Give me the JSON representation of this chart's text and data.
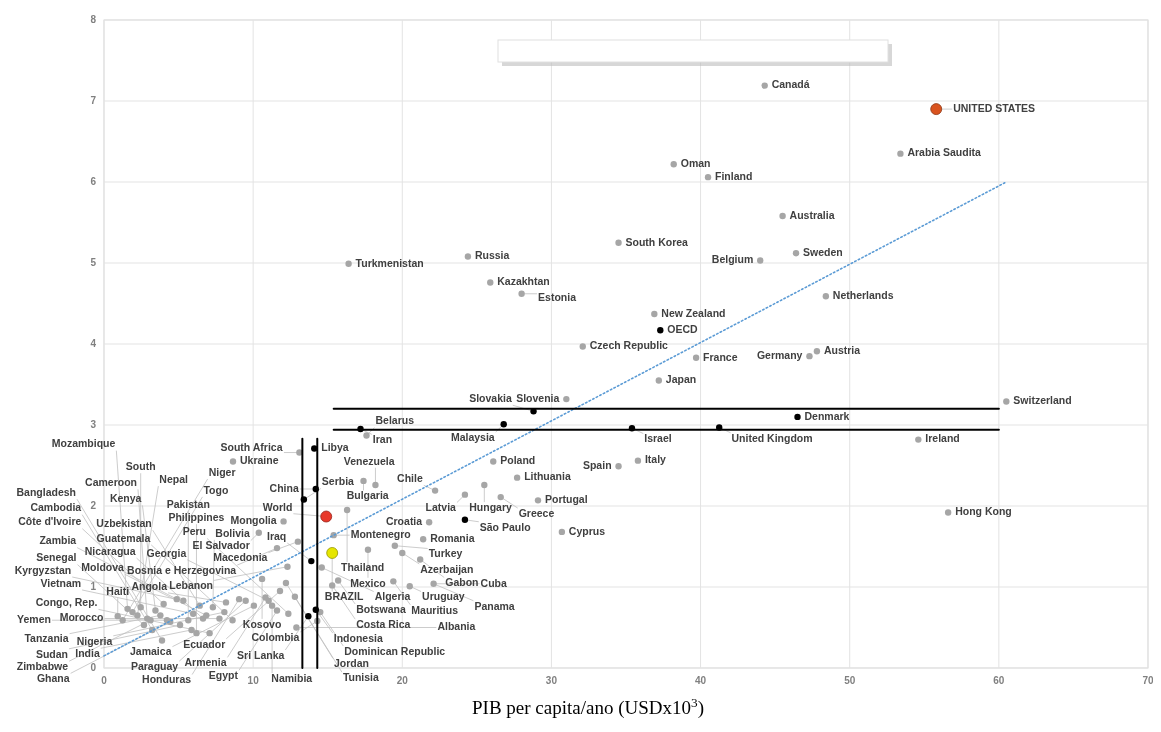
{
  "chart_data": {
    "type": "scatter",
    "xlabel": "PIB per capita/ano (USDx10$^{3}$)",
    "xlim": [
      0,
      70
    ],
    "ylim": [
      0,
      8
    ],
    "xticks": [
      0,
      10,
      20,
      30,
      40,
      50,
      60,
      70
    ],
    "yticks": [
      0,
      1,
      2,
      3,
      4,
      5,
      6,
      7,
      8
    ],
    "grid": true,
    "series": [
      {
        "color": "#a6a6a6",
        "marker": "circle",
        "x": [
          16.4,
          24.4,
          25.9,
          28.0,
          38.2,
          40.5,
          34.5,
          36.9,
          32.1,
          39.7,
          37.2,
          31.0,
          44.3,
          53.4,
          45.5,
          46.4,
          44.0,
          48.4,
          47.8,
          47.3,
          60.5,
          54.6,
          35.8,
          56.6,
          34.5,
          30.7,
          17.6,
          17.4,
          18.2,
          26.1,
          27.7,
          25.5,
          26.6,
          24.2,
          22.2,
          29.1,
          21.8,
          16.3,
          15.4,
          17.7,
          19.5,
          21.4,
          20.0,
          21.2,
          14.6,
          15.7,
          15.3,
          19.4,
          20.5,
          22.1,
          14.5,
          14.3,
          13.1,
          8.65,
          0.92,
          1.25,
          1.58,
          1.91,
          2.24,
          2.46,
          2.68,
          2.9,
          3.12,
          3.23,
          3.45,
          3.78,
          3.89,
          4.0,
          4.22,
          4.44,
          4.88,
          5.1,
          5.32,
          5.65,
          5.87,
          5.98,
          6.2,
          6.42,
          6.64,
          6.86,
          7.08,
          7.3,
          7.74,
          8.07,
          8.18,
          8.62,
          9.06,
          9.5,
          10.05,
          10.38,
          10.83,
          11.04,
          11.27,
          11.6,
          12.04,
          12.36,
          13.0,
          12.3,
          10.6,
          12.2,
          11.8,
          12.8,
          12.9,
          11.6
        ],
        "values": [
          4.99,
          5.08,
          4.76,
          4.62,
          6.22,
          6.06,
          5.25,
          4.37,
          3.97,
          3.83,
          3.55,
          3.32,
          7.19,
          6.35,
          5.58,
          5.12,
          5.03,
          4.59,
          3.91,
          3.85,
          3.29,
          2.82,
          2.56,
          1.92,
          2.49,
          1.68,
          2.87,
          2.31,
          2.26,
          2.55,
          2.35,
          2.26,
          2.11,
          2.14,
          2.19,
          2.07,
          1.8,
          1.95,
          1.64,
          1.46,
          1.51,
          1.59,
          1.42,
          1.34,
          1.24,
          1.08,
          1.02,
          1.07,
          1.01,
          1.04,
          0.69,
          0.58,
          2.66,
          2.55,
          0.64,
          0.59,
          0.73,
          0.69,
          0.65,
          0.75,
          0.53,
          0.61,
          0.59,
          0.47,
          0.71,
          0.65,
          0.34,
          0.79,
          0.59,
          0.57,
          0.85,
          0.53,
          0.83,
          0.59,
          0.47,
          0.67,
          0.43,
          0.77,
          0.61,
          0.65,
          0.43,
          0.75,
          0.61,
          0.69,
          0.81,
          0.59,
          0.85,
          0.83,
          0.77,
          1.67,
          0.87,
          0.83,
          0.77,
          0.71,
          1.81,
          0.67,
          1.56,
          1.25,
          1.1,
          1.05,
          0.95,
          0.88,
          0.5,
          1.48
        ]
      },
      {
        "color": "#000000",
        "marker": "circle",
        "x": [
          13.4,
          14.2,
          14.1,
          13.9,
          14.2,
          13.7,
          17.2,
          26.8,
          28.8,
          35.4,
          41.25,
          46.5,
          24.2,
          37.3
        ],
        "values": [
          2.08,
          2.21,
          2.71,
          1.32,
          0.72,
          0.64,
          2.95,
          3.01,
          3.17,
          2.96,
          2.97,
          3.1,
          1.83,
          4.17
        ]
      },
      {
        "color": "#e8392b",
        "marker": "circle",
        "x": [
          14.9
        ],
        "values": [
          1.87
        ]
      },
      {
        "color": "#e6e600",
        "marker": "circle",
        "x": [
          15.3
        ],
        "values": [
          1.42
        ]
      },
      {
        "color": "#d9531e",
        "marker": "circle",
        "x": [
          55.8
        ],
        "values": [
          6.9
        ]
      },
      {
        "type": "line",
        "color": "#5b9bd5",
        "marker": "none",
        "line_style": "dotted",
        "x": [
          0,
          60.5
        ],
        "values": [
          0.15,
          6.0
        ]
      },
      {
        "type": "line",
        "color": "#000000",
        "marker": "none",
        "line_style": "solid",
        "x": [
          15.4,
          60
        ],
        "values": [
          3.2,
          3.2
        ]
      },
      {
        "type": "line",
        "color": "#000000",
        "marker": "none",
        "line_style": "solid",
        "x": [
          15.4,
          60
        ],
        "values": [
          2.94,
          2.94
        ]
      },
      {
        "type": "line",
        "color": "#000000",
        "marker": "none",
        "line_style": "solid",
        "x": [
          13.3,
          13.3
        ],
        "values": [
          0,
          2.83
        ]
      },
      {
        "type": "line",
        "color": "#000000",
        "marker": "none",
        "line_style": "solid",
        "x": [
          14.3,
          14.3
        ],
        "values": [
          0,
          2.83
        ]
      }
    ],
    "annotations": [
      {
        "text": "Canadá",
        "x": 44.3,
        "y": 7.19
      },
      {
        "text": "UNITED STATES",
        "x": 55.8,
        "y": 6.9
      },
      {
        "text": "Arabia Saudita",
        "x": 53.4,
        "y": 6.35
      },
      {
        "text": "Oman",
        "x": 38.2,
        "y": 6.22
      },
      {
        "text": "Finland",
        "x": 40.5,
        "y": 6.06
      },
      {
        "text": "Australia",
        "x": 45.5,
        "y": 5.58
      },
      {
        "text": "Turkmenistan",
        "x": 16.4,
        "y": 4.99
      },
      {
        "text": "Russia",
        "x": 24.4,
        "y": 5.08
      },
      {
        "text": "South Korea",
        "x": 34.5,
        "y": 5.25
      },
      {
        "text": "Sweden",
        "x": 46.4,
        "y": 5.12
      },
      {
        "text": "Belgium",
        "x": 44.0,
        "y": 5.03
      },
      {
        "text": "Kazakhtan",
        "x": 25.9,
        "y": 4.76
      },
      {
        "text": "Estonia",
        "x": 28.0,
        "y": 4.62
      },
      {
        "text": "Netherlands",
        "x": 48.4,
        "y": 4.59
      },
      {
        "text": "New Zealand",
        "x": 36.9,
        "y": 4.37
      },
      {
        "text": "OECD",
        "x": 37.3,
        "y": 4.17
      },
      {
        "text": "Austria",
        "x": 47.8,
        "y": 3.91
      },
      {
        "text": "Czech Republic",
        "x": 32.1,
        "y": 3.97
      },
      {
        "text": "France",
        "x": 39.7,
        "y": 3.83
      },
      {
        "text": "Germany",
        "x": 47.3,
        "y": 3.85
      },
      {
        "text": "Japan",
        "x": 37.2,
        "y": 3.55
      },
      {
        "text": "Slovenia",
        "x": 31.0,
        "y": 3.32
      },
      {
        "text": "Switzerland",
        "x": 60.5,
        "y": 3.29
      },
      {
        "text": "Slovakia",
        "x": 28.8,
        "y": 3.17
      },
      {
        "text": "Iran",
        "x": 17.2,
        "y": 2.95
      },
      {
        "text": "Malaysia",
        "x": 26.8,
        "y": 3.01
      },
      {
        "text": "Israel",
        "x": 35.4,
        "y": 2.96
      },
      {
        "text": "United Kingdom",
        "x": 41.25,
        "y": 2.97
      },
      {
        "text": "Denmark",
        "x": 46.5,
        "y": 3.1
      },
      {
        "text": "Belarus",
        "x": 17.6,
        "y": 2.87
      },
      {
        "text": "Ireland",
        "x": 54.6,
        "y": 2.82
      },
      {
        "text": "Libya",
        "x": 14.1,
        "y": 2.71
      },
      {
        "text": "Italy",
        "x": 35.8,
        "y": 2.56
      },
      {
        "text": "Spain",
        "x": 34.5,
        "y": 2.49
      },
      {
        "text": "Hong Kong",
        "x": 56.6,
        "y": 1.92
      },
      {
        "text": "Cyprus",
        "x": 30.7,
        "y": 1.68
      },
      {
        "text": "Portugal",
        "x": 29.1,
        "y": 2.07
      },
      {
        "text": "Poland",
        "x": 26.1,
        "y": 2.55
      },
      {
        "text": "Lithuania",
        "x": 27.7,
        "y": 2.35
      },
      {
        "text": "Hungary",
        "x": 25.5,
        "y": 2.26
      },
      {
        "text": "Greece",
        "x": 26.6,
        "y": 2.11
      },
      {
        "text": "Latvia",
        "x": 24.2,
        "y": 2.14
      },
      {
        "text": "São Paulo",
        "x": 24.2,
        "y": 1.83
      },
      {
        "text": "Chile",
        "x": 22.2,
        "y": 2.19
      },
      {
        "text": "Croatia",
        "x": 21.8,
        "y": 1.8
      },
      {
        "text": "Venezuela",
        "x": 18.2,
        "y": 2.26
      },
      {
        "text": "Bulgaria",
        "x": 17.4,
        "y": 2.31
      },
      {
        "text": "China",
        "x": 14.2,
        "y": 2.21
      },
      {
        "text": "Thailand",
        "x": 16.3,
        "y": 1.95
      },
      {
        "text": "World",
        "x": 14.9,
        "y": 1.87
      },
      {
        "text": "Montenegro",
        "x": 15.4,
        "y": 1.64
      },
      {
        "text": "Romania",
        "x": 21.4,
        "y": 1.59
      },
      {
        "text": "Turkey",
        "x": 19.5,
        "y": 1.51
      },
      {
        "text": "Mexico",
        "x": 17.7,
        "y": 1.46
      },
      {
        "text": "BRAZIL",
        "x": 15.3,
        "y": 1.42
      },
      {
        "text": "Azerbaijan",
        "x": 20.0,
        "y": 1.42
      },
      {
        "text": "Gabon",
        "x": 21.2,
        "y": 1.34
      },
      {
        "text": "Uruguay",
        "x": 20.5,
        "y": 1.01
      },
      {
        "text": "Iraq",
        "x": 13.9,
        "y": 1.32
      },
      {
        "text": "Algeria",
        "x": 14.6,
        "y": 1.24
      },
      {
        "text": "Botswana",
        "x": 15.7,
        "y": 1.08
      },
      {
        "text": "Costa Rica",
        "x": 15.3,
        "y": 1.02
      },
      {
        "text": "Mauritius",
        "x": 19.4,
        "y": 1.07
      },
      {
        "text": "Cuba",
        "x": 22.1,
        "y": 1.04
      },
      {
        "text": "Panama",
        "x": 22.1,
        "y": 1.04
      },
      {
        "text": "Indonesia",
        "x": 14.2,
        "y": 0.72
      },
      {
        "text": "Dominican Republic",
        "x": 14.5,
        "y": 0.69
      },
      {
        "text": "Colombia",
        "x": 14.3,
        "y": 0.58
      },
      {
        "text": "Sri Lanka",
        "x": 13.7,
        "y": 0.64
      },
      {
        "text": "Serbia",
        "x": 13.4,
        "y": 2.08
      },
      {
        "text": "South Africa",
        "x": 13.1,
        "y": 2.66
      },
      {
        "text": "Ukraine",
        "x": 8.65,
        "y": 2.55
      },
      {
        "text": "Mongolia",
        "x": 12.04,
        "y": 1.81
      },
      {
        "text": "El Salvador",
        "x": 10.38,
        "y": 1.67
      },
      {
        "text": "Macedonia",
        "x": 13.0,
        "y": 1.56
      },
      {
        "text": "Bosnia e Herzegovina",
        "x": 11.6,
        "y": 1.48
      },
      {
        "text": "Lebanon",
        "x": 12.3,
        "y": 1.25
      },
      {
        "text": "Kosovo",
        "x": 10.6,
        "y": 1.1
      },
      {
        "text": "Jordan",
        "x": 12.2,
        "y": 1.05
      },
      {
        "text": "Ecuador",
        "x": 11.8,
        "y": 0.95
      },
      {
        "text": "Tunisia",
        "x": 12.8,
        "y": 0.88
      },
      {
        "text": "Armenia",
        "x": 10.83,
        "y": 0.87
      },
      {
        "text": "Georgia",
        "x": 11.04,
        "y": 0.83
      },
      {
        "text": "Namibia",
        "x": 11.27,
        "y": 0.77
      },
      {
        "text": "Egypt",
        "x": 11.6,
        "y": 0.71
      },
      {
        "text": "Peru",
        "x": 12.36,
        "y": 0.67
      },
      {
        "text": "Albania",
        "x": 12.9,
        "y": 0.5
      },
      {
        "text": "Honduras",
        "x": 9.06,
        "y": 0.85
      },
      {
        "text": "Paraguay",
        "x": 9.5,
        "y": 0.83
      },
      {
        "text": "Jamaica",
        "x": 10.05,
        "y": 0.77
      },
      {
        "text": "Guatemala",
        "x": 8.62,
        "y": 0.59
      },
      {
        "text": "Angola",
        "x": 8.18,
        "y": 0.81
      },
      {
        "text": "Nigeria",
        "x": 8.07,
        "y": 0.69
      },
      {
        "text": "Morocco",
        "x": 7.74,
        "y": 0.61
      },
      {
        "text": "Bolivia",
        "x": 7.3,
        "y": 0.75
      },
      {
        "text": "Congo, Rep.",
        "x": 7.08,
        "y": 0.43
      },
      {
        "text": "Moldova",
        "x": 6.86,
        "y": 0.65
      },
      {
        "text": "Nicaragua",
        "x": 6.64,
        "y": 0.61
      },
      {
        "text": "Uzbekistan",
        "x": 6.42,
        "y": 0.77
      },
      {
        "text": "Philippines",
        "x": 6.2,
        "y": 0.43
      },
      {
        "text": "Vietnam",
        "x": 5.98,
        "y": 0.67
      },
      {
        "text": "India",
        "x": 5.87,
        "y": 0.47
      },
      {
        "text": "Pakistan",
        "x": 5.65,
        "y": 0.59
      },
      {
        "text": "Kyrgyzstan",
        "x": 5.32,
        "y": 0.83
      },
      {
        "text": "Sudan",
        "x": 5.1,
        "y": 0.53
      },
      {
        "text": "Zambia",
        "x": 4.88,
        "y": 0.85
      },
      {
        "text": "Ghana",
        "x": 4.44,
        "y": 0.57
      },
      {
        "text": "Yemen",
        "x": 4.22,
        "y": 0.59
      },
      {
        "text": "Côte d'Ivoire",
        "x": 4.0,
        "y": 0.79
      },
      {
        "text": "Bangladesh",
        "x": 3.89,
        "y": 0.34
      },
      {
        "text": "Tanzania",
        "x": 3.78,
        "y": 0.65
      },
      {
        "text": "Kenya",
        "x": 3.45,
        "y": 0.71
      },
      {
        "text": "Cambodia",
        "x": 3.23,
        "y": 0.47
      },
      {
        "text": "Zimbabwe",
        "x": 3.12,
        "y": 0.59
      },
      {
        "text": "Cameroon",
        "x": 2.9,
        "y": 0.61
      },
      {
        "text": "Senegal",
        "x": 2.68,
        "y": 0.53
      },
      {
        "text": "South",
        "x": 2.46,
        "y": 0.75
      },
      {
        "text": "Nepal",
        "x": 2.24,
        "y": 0.65
      },
      {
        "text": "Togo",
        "x": 1.91,
        "y": 0.69
      },
      {
        "text": "Mozambique",
        "x": 1.58,
        "y": 0.73
      },
      {
        "text": "Niger",
        "x": 1.25,
        "y": 0.59
      },
      {
        "text": "Haiti",
        "x": 0.92,
        "y": 0.64
      }
    ]
  }
}
